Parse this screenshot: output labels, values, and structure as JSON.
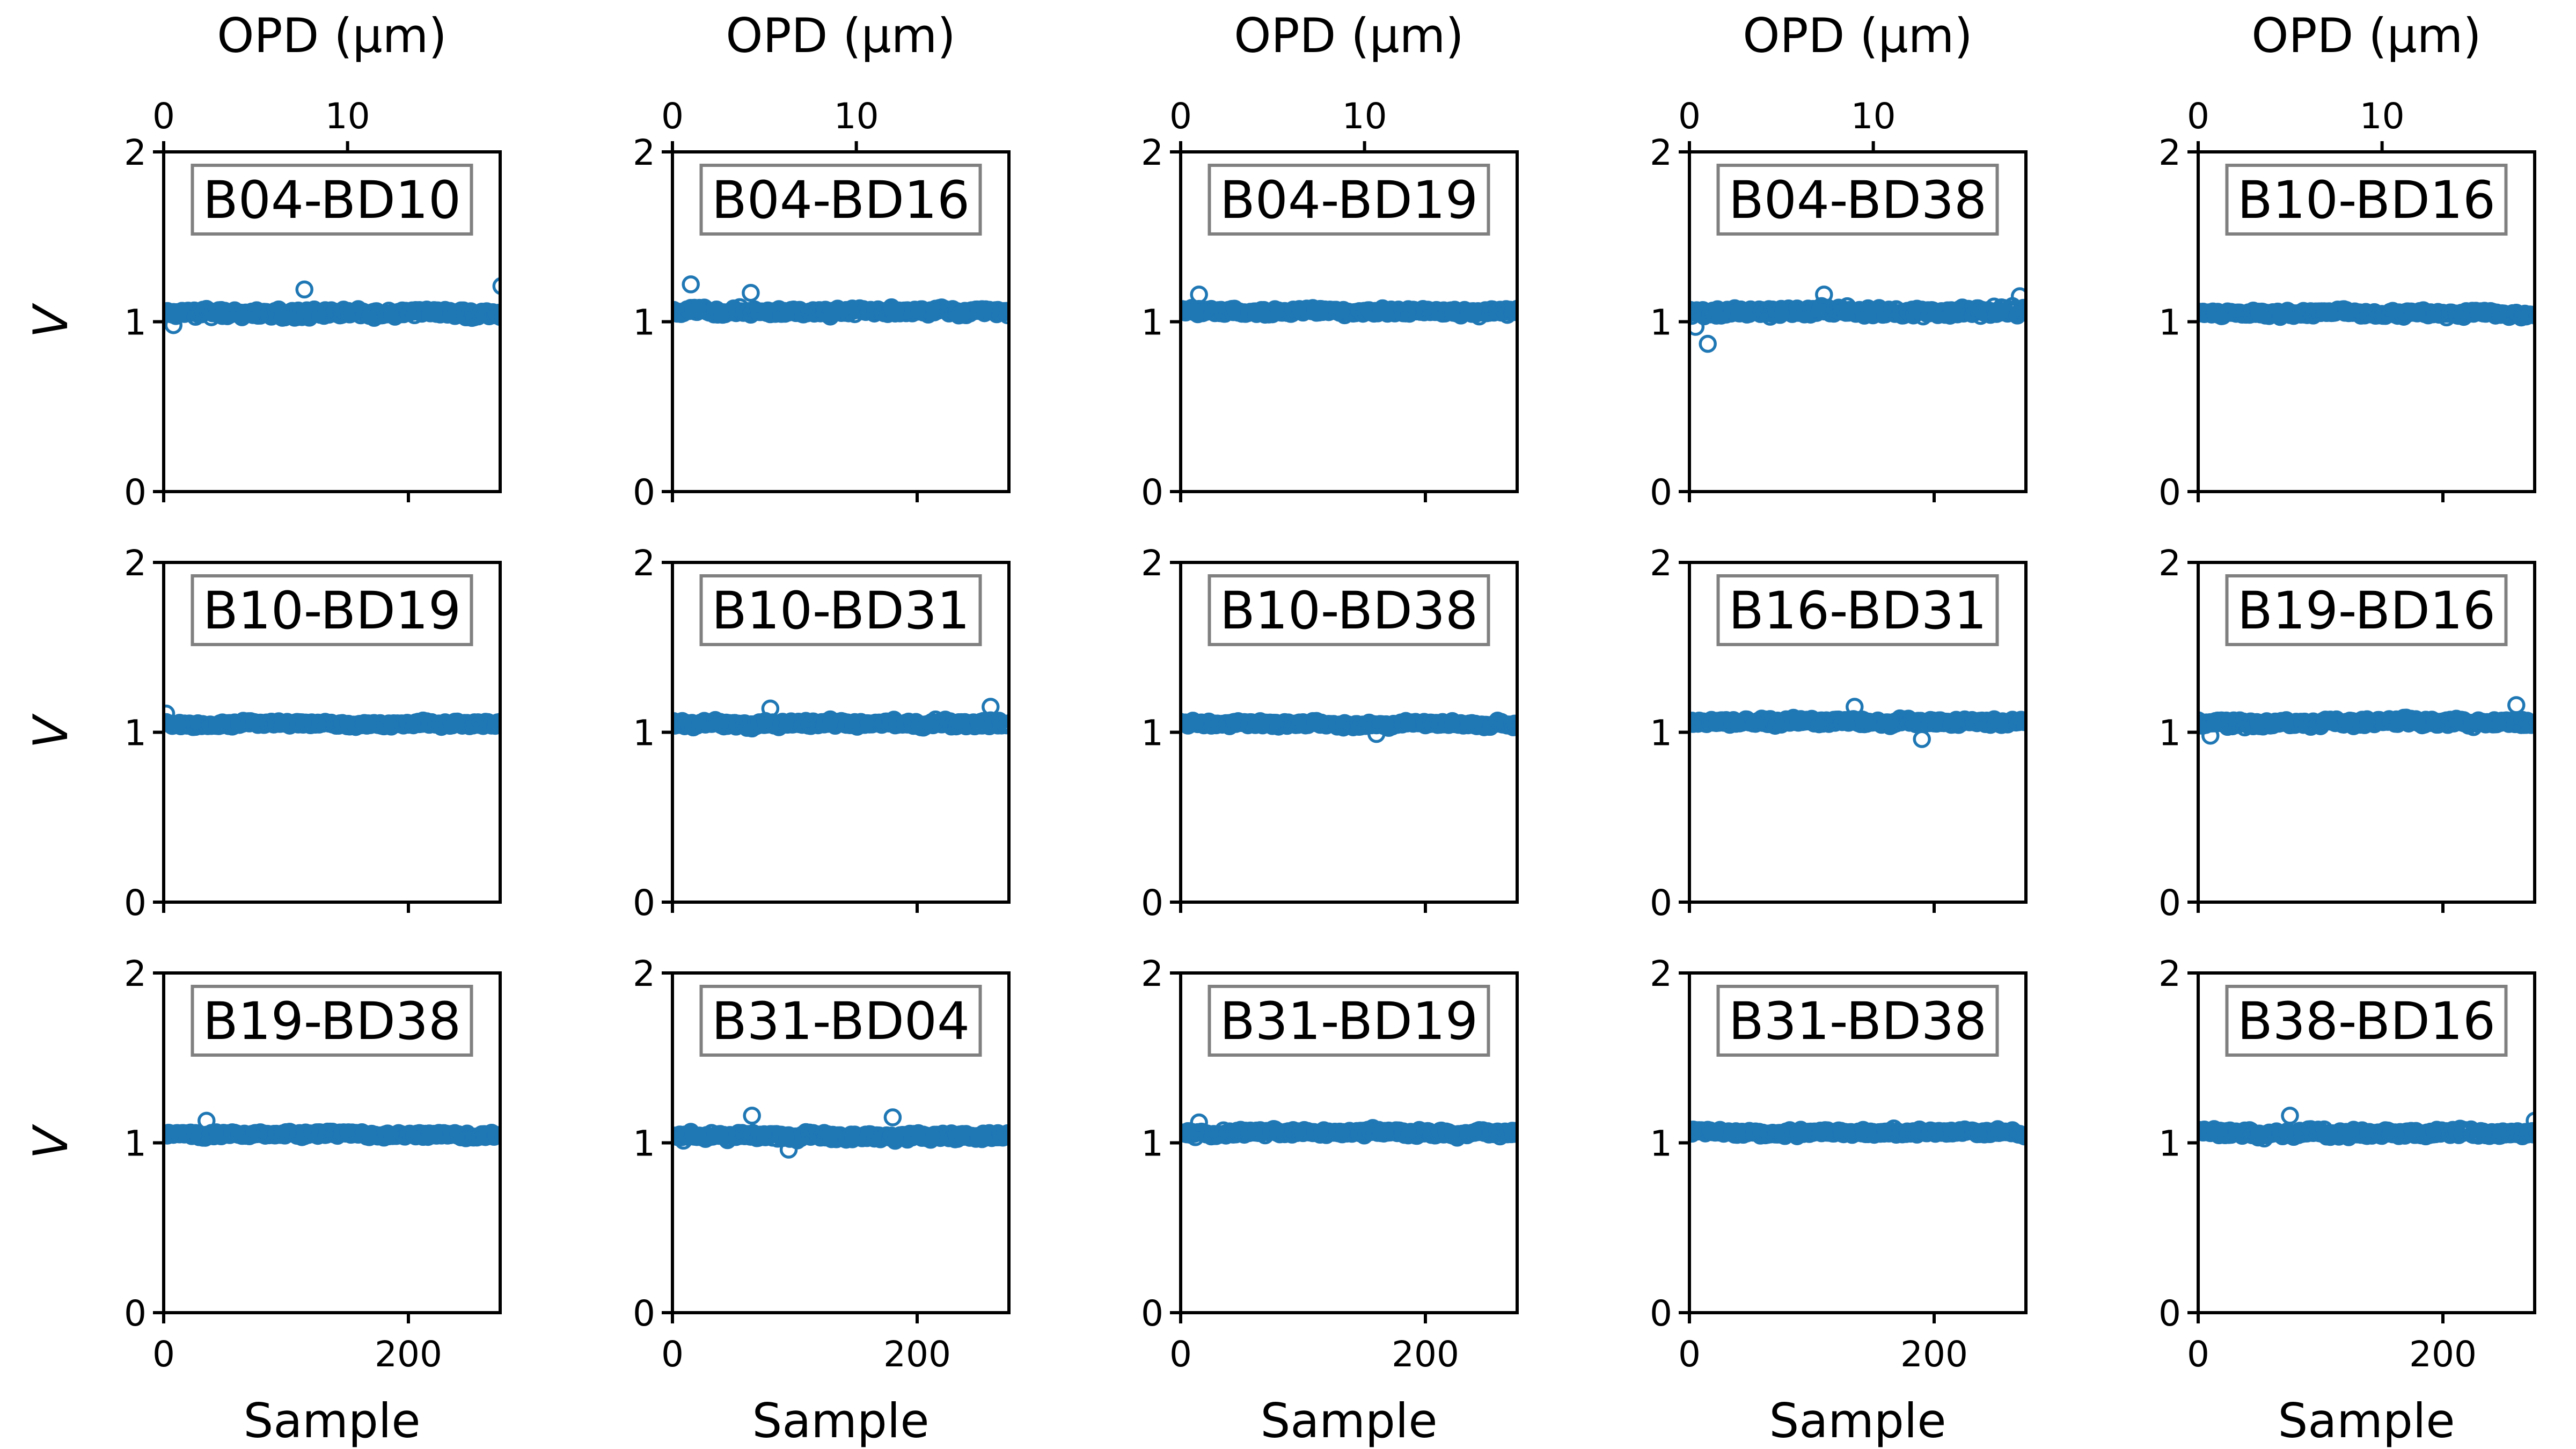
{
  "chart_data": {
    "type": "scatter",
    "layout": {
      "rows": 3,
      "cols": 5
    },
    "marker": "open-circle",
    "colors": {
      "points": "#1f77b4",
      "label_border": "#808080",
      "axes": "#000000"
    },
    "x_axis": {
      "label": "Sample",
      "lim": [
        0,
        275
      ],
      "ticks": [
        0,
        200
      ],
      "tick_labels": [
        "0",
        "200"
      ]
    },
    "top_axis": {
      "label": "OPD (μm)",
      "lim": [
        0,
        18.3
      ],
      "ticks": [
        0,
        10
      ],
      "tick_labels": [
        "0",
        "10"
      ]
    },
    "y_axis": {
      "label": "V",
      "lim": [
        0,
        2
      ],
      "ticks": [
        0,
        1,
        2
      ],
      "tick_labels": [
        "0",
        "1",
        "2"
      ]
    },
    "n_samples": 275,
    "panels": [
      {
        "label": "B04-BD10",
        "mean": 1.05,
        "spread": 0.025,
        "outliers": [
          [
            115,
            1.19
          ],
          [
            276,
            1.21
          ],
          [
            8,
            0.98
          ]
        ]
      },
      {
        "label": "B04-BD16",
        "mean": 1.06,
        "spread": 0.022,
        "outliers": [
          [
            15,
            1.22
          ],
          [
            64,
            1.17
          ]
        ]
      },
      {
        "label": "B04-BD19",
        "mean": 1.06,
        "spread": 0.02,
        "outliers": [
          [
            15,
            1.16
          ]
        ]
      },
      {
        "label": "B04-BD38",
        "mean": 1.06,
        "spread": 0.03,
        "outliers": [
          [
            15,
            0.87
          ],
          [
            5,
            0.97
          ],
          [
            110,
            1.16
          ],
          [
            270,
            1.15
          ]
        ]
      },
      {
        "label": "B10-BD16",
        "mean": 1.05,
        "spread": 0.016,
        "outliers": []
      },
      {
        "label": "B10-BD19",
        "mean": 1.05,
        "spread": 0.015,
        "outliers": [
          [
            2,
            1.11
          ]
        ]
      },
      {
        "label": "B10-BD31",
        "mean": 1.05,
        "spread": 0.02,
        "outliers": [
          [
            80,
            1.14
          ],
          [
            260,
            1.15
          ]
        ]
      },
      {
        "label": "B10-BD38",
        "mean": 1.05,
        "spread": 0.015,
        "outliers": [
          [
            160,
            0.99
          ]
        ]
      },
      {
        "label": "B16-BD31",
        "mean": 1.06,
        "spread": 0.02,
        "outliers": [
          [
            135,
            1.15
          ],
          [
            190,
            0.96
          ]
        ]
      },
      {
        "label": "B19-BD16",
        "mean": 1.06,
        "spread": 0.022,
        "outliers": [
          [
            10,
            0.98
          ],
          [
            260,
            1.16
          ]
        ]
      },
      {
        "label": "B19-BD38",
        "mean": 1.05,
        "spread": 0.015,
        "outliers": [
          [
            35,
            1.13
          ]
        ]
      },
      {
        "label": "B31-BD04",
        "mean": 1.04,
        "spread": 0.022,
        "outliers": [
          [
            65,
            1.16
          ],
          [
            180,
            1.15
          ],
          [
            95,
            0.96
          ]
        ]
      },
      {
        "label": "B31-BD19",
        "mean": 1.06,
        "spread": 0.018,
        "outliers": [
          [
            15,
            1.12
          ]
        ]
      },
      {
        "label": "B31-BD38",
        "mean": 1.06,
        "spread": 0.016,
        "outliers": []
      },
      {
        "label": "B38-BD16",
        "mean": 1.06,
        "spread": 0.022,
        "outliers": [
          [
            75,
            1.16
          ],
          [
            275,
            1.13
          ]
        ]
      }
    ]
  }
}
